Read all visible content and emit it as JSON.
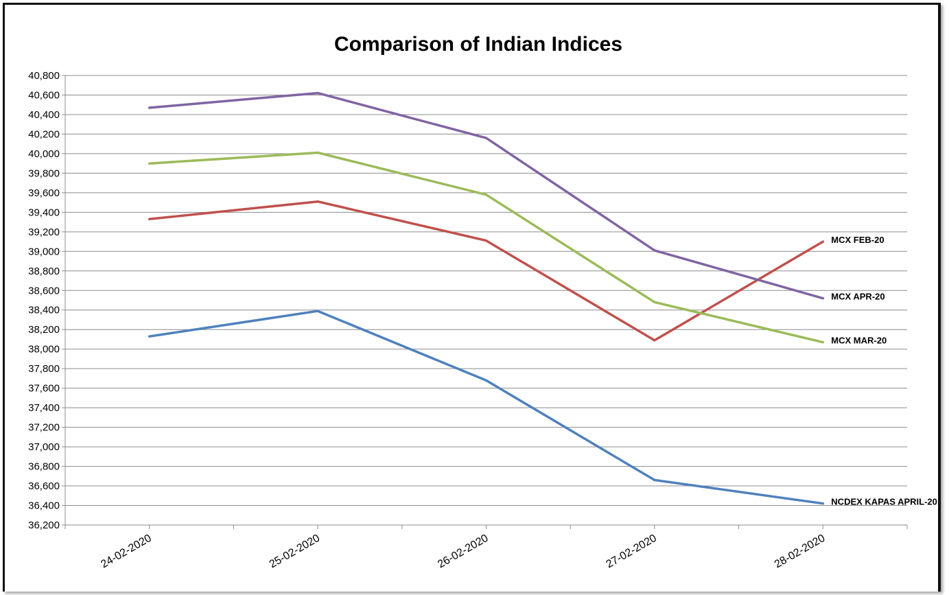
{
  "chart_data": {
    "type": "line",
    "title": "Comparison of Indian Indices",
    "xlabel": "",
    "ylabel": "",
    "categories": [
      "24-02-2020",
      "25-02-2020",
      "26-02-2020",
      "27-02-2020",
      "28-02-2020"
    ],
    "ylim": [
      36200,
      40800
    ],
    "ytick_step": 200,
    "ytick_labels": [
      "36,200",
      "36,400",
      "36,600",
      "36,800",
      "37,000",
      "37,200",
      "37,400",
      "37,600",
      "37,800",
      "38,000",
      "38,200",
      "38,400",
      "38,600",
      "38,800",
      "39,000",
      "39,200",
      "39,400",
      "39,600",
      "39,800",
      "40,000",
      "40,200",
      "40,400",
      "40,600",
      "40,800"
    ],
    "grid": true,
    "legend": "inline labels at right end of each line",
    "series": [
      {
        "name": "NCDEX KAPAS APRIL-20",
        "color": "#4F81BD",
        "values": [
          38130,
          38390,
          37680,
          36660,
          36420
        ]
      },
      {
        "name": "MCX FEB-20",
        "color": "#C0504D",
        "values": [
          39330,
          39510,
          39110,
          38090,
          39100
        ]
      },
      {
        "name": "MCX MAR-20",
        "color": "#9BBB59",
        "values": [
          39900,
          40010,
          39580,
          38480,
          38070
        ]
      },
      {
        "name": "MCX APR-20",
        "color": "#8064A2",
        "values": [
          40470,
          40620,
          40160,
          39010,
          38520
        ]
      }
    ]
  }
}
